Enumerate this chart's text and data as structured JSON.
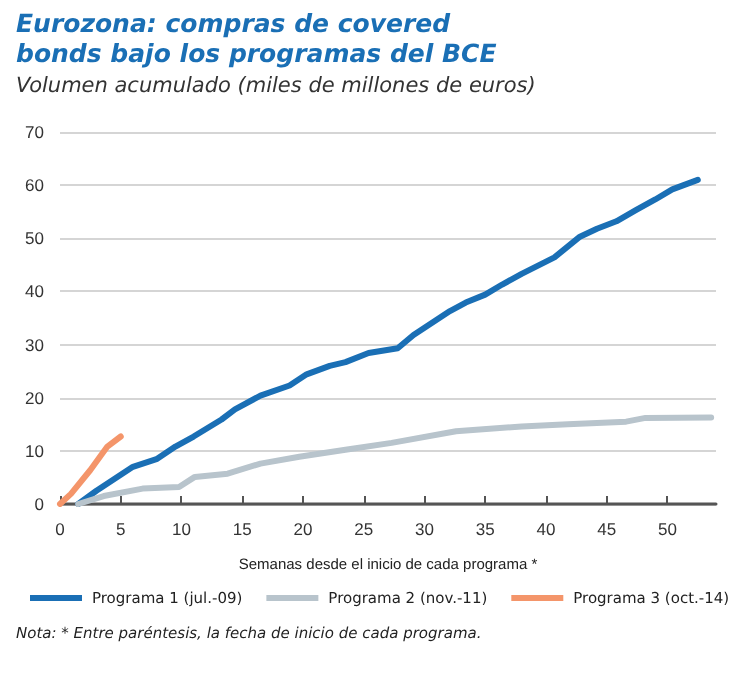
{
  "chart_data": {
    "type": "line",
    "title": "Eurozona: compras de covered bonds bajo los programas del BCE",
    "subtitle": "Volumen acumulado (miles de millones de euros)",
    "xlabel": "Semanas desde el inicio de cada programa *",
    "annotations": [
      "Nota: * Entre paréntesis, la fecha de inicio de cada programa."
    ],
    "xlim": [
      0,
      54
    ],
    "xticks": [
      0,
      5,
      10,
      15,
      20,
      25,
      30,
      35,
      40,
      45,
      50
    ],
    "ylim": [
      0,
      70
    ],
    "yticks": [
      0,
      10,
      20,
      30,
      40,
      50,
      60,
      70
    ],
    "grid": "y",
    "legend": "bottom",
    "marker": "none",
    "series": [
      {
        "name": "Programa 1 (jul.-09)",
        "color": "#1a6fb5",
        "x": [
          1.5,
          3,
          6,
          8,
          9.5,
          11,
          13.3,
          14.4,
          16.5,
          18.9,
          20.3,
          22.2,
          23.5,
          25.4,
          27.8,
          29.1,
          32.1,
          33.4,
          35,
          36.4,
          38,
          40.7,
          42.8,
          44.2,
          45.8,
          47.4,
          49,
          50.4,
          52.5
        ],
        "values": [
          0,
          2.5,
          7,
          8.5,
          10.8,
          12.7,
          15.9,
          17.8,
          20.4,
          22.3,
          24.4,
          26,
          26.7,
          28.4,
          29.3,
          31.8,
          36.3,
          37.9,
          39.4,
          41.3,
          43.3,
          46.4,
          50.3,
          51.8,
          53.2,
          55.3,
          57.3,
          59.2,
          61
        ]
      },
      {
        "name": "Programa 2 (nov.-11)",
        "color": "#b8c4cc",
        "x": [
          1.5,
          3.6,
          6.8,
          9.8,
          11.1,
          13.8,
          16.5,
          19.7,
          23.5,
          27.3,
          32.6,
          38,
          41.8,
          46.6,
          48.2,
          53.6
        ],
        "values": [
          0,
          1.5,
          2.9,
          3.2,
          5.1,
          5.7,
          7.6,
          8.9,
          10.2,
          11.5,
          13.7,
          14.6,
          15,
          15.5,
          16.2,
          16.3
        ]
      },
      {
        "name": "Programa 3 (oct.-14)",
        "color": "#f4956a",
        "x": [
          0,
          0.9,
          2.5,
          3.9,
          5
        ],
        "values": [
          0,
          1.9,
          6.4,
          10.8,
          12.7
        ]
      }
    ]
  }
}
